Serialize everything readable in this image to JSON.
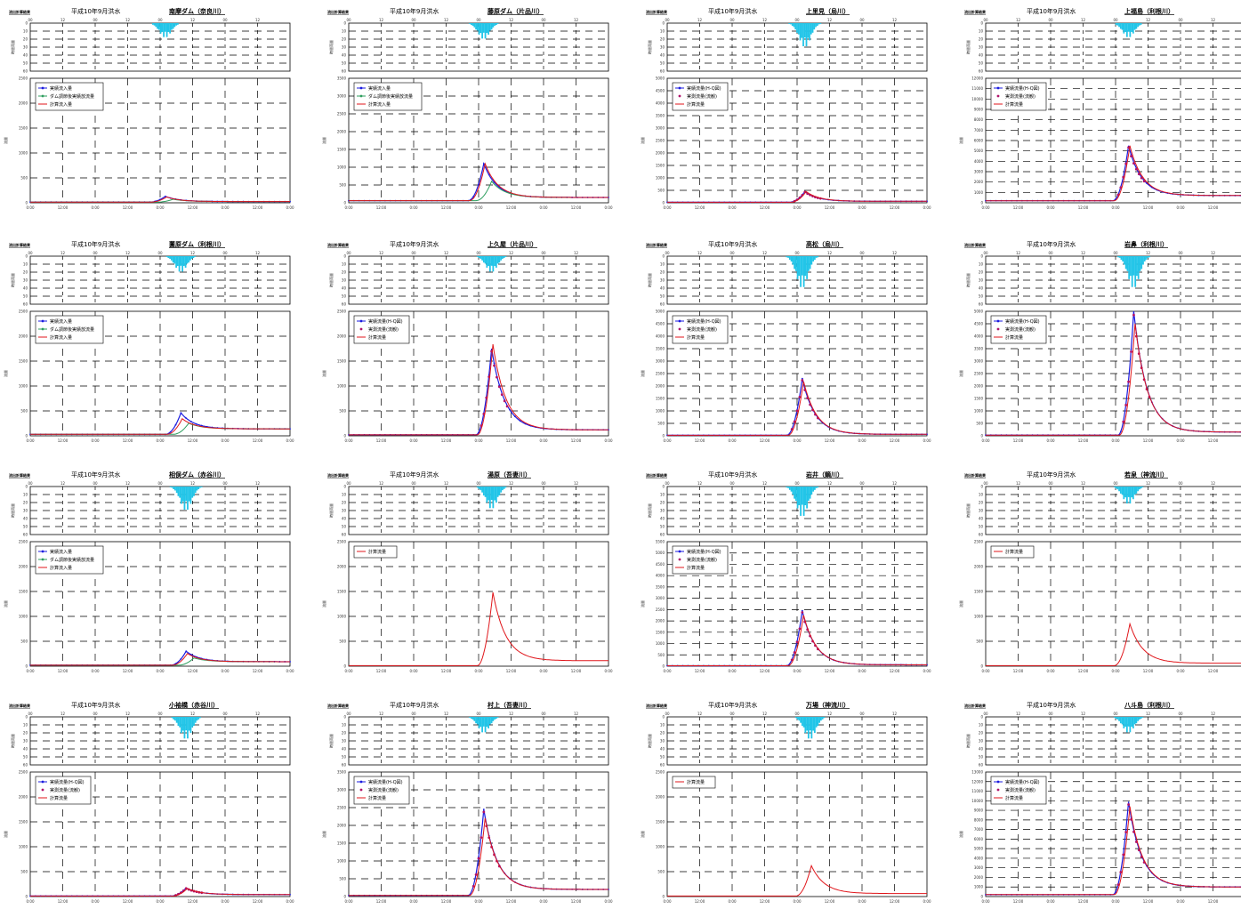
{
  "header_left": "流出計算結果",
  "header_event": "平成10年9月洪水",
  "rain_ylabel": "時間雨量",
  "flow_ylabel": "流量",
  "rain_ticks": [
    "0",
    "10",
    "20",
    "30",
    "40",
    "50",
    "60"
  ],
  "top_time_ticks": [
    "00",
    "12",
    "00",
    "12",
    "00",
    "12",
    "00",
    "12"
  ],
  "bottom_time_ticks": [
    "0:00",
    "12:00",
    "0:00",
    "12:00",
    "0:00",
    "12:00",
    "0:00",
    "12:00",
    "0:00"
  ],
  "colors": {
    "rain": "#22c5e8",
    "observed": "#1a1adf",
    "dam_release": "#2e9e5e",
    "computed": "#e0161b",
    "observed_dot": "#b0126a",
    "grid": "#000000"
  },
  "legend_labels": {
    "inflow": "実績流入量",
    "dam_release": "ダム調節後実績放流量",
    "computed_inflow": "計算流入量",
    "obs_hq": "実績流量(H-Q図)",
    "obs_meas": "実測流量(流観)",
    "computed_flow": "計算流量"
  },
  "chart_data": [
    {
      "type": "line",
      "title": "南摩ダム（奈良川）",
      "legend_type": "dam",
      "ylim": [
        0,
        2500
      ],
      "yticks": [
        0,
        500,
        1000,
        1500,
        2000,
        2500
      ],
      "peak": 130,
      "peak_pos": 0.52,
      "base": 15,
      "tail": 25,
      "calc_ratio": 0.9,
      "release": true,
      "rain_peak": 18
    },
    {
      "type": "line",
      "title": "藤原ダム（片品川）",
      "legend_type": "dam",
      "ylim": [
        0,
        3500
      ],
      "yticks": [
        0,
        500,
        1000,
        1500,
        2000,
        2500,
        3000,
        3500
      ],
      "peak": 1100,
      "peak_pos": 0.52,
      "base": 60,
      "tail": 150,
      "calc_ratio": 1.0,
      "release": true,
      "rain_peak": 20
    },
    {
      "type": "line",
      "title": "上里見（烏川）",
      "legend_type": "obs",
      "ylim": [
        0,
        5000
      ],
      "yticks": [
        0,
        500,
        1000,
        1500,
        2000,
        2500,
        3000,
        3500,
        4000,
        4500,
        5000
      ],
      "peak": 450,
      "peak_pos": 0.53,
      "base": 20,
      "tail": 60,
      "calc_ratio": 1.0,
      "release": false,
      "rain_peak": 30
    },
    {
      "type": "line",
      "title": "上福島（利根川）",
      "legend_type": "obs",
      "ylim": [
        0,
        12000
      ],
      "yticks": [
        0,
        1000,
        2000,
        3000,
        4000,
        5000,
        6000,
        7000,
        8000,
        9000,
        10000,
        11000,
        12000
      ],
      "peak": 5500,
      "peak_pos": 0.55,
      "base": 200,
      "tail": 700,
      "calc_ratio": 1.0,
      "release": false,
      "rain_peak": 18
    },
    {
      "type": "line",
      "title": "薗原ダム（利根川）",
      "legend_type": "dam",
      "ylim": [
        0,
        2500
      ],
      "yticks": [
        0,
        500,
        1000,
        1500,
        2000,
        2500
      ],
      "peak": 460,
      "peak_pos": 0.58,
      "base": 30,
      "tail": 140,
      "calc_ratio": 0.75,
      "release": true,
      "rain_peak": 20
    },
    {
      "type": "line",
      "title": "上久屋（片品川）",
      "legend_type": "obs",
      "ylim": [
        0,
        2500
      ],
      "yticks": [
        0,
        500,
        1000,
        1500,
        2000,
        2500
      ],
      "peak": 1750,
      "peak_pos": 0.55,
      "base": 20,
      "tail": 120,
      "calc_ratio": 1.05,
      "release": false,
      "rain_peak": 20
    },
    {
      "type": "line",
      "title": "高松（烏川）",
      "legend_type": "obs",
      "ylim": [
        0,
        5000
      ],
      "yticks": [
        0,
        500,
        1000,
        1500,
        2000,
        2500,
        3000,
        3500,
        4000,
        4500,
        5000
      ],
      "peak": 2300,
      "peak_pos": 0.52,
      "base": 20,
      "tail": 60,
      "calc_ratio": 0.95,
      "release": false,
      "rain_peak": 40
    },
    {
      "type": "line",
      "title": "岩鼻（利根川）",
      "legend_type": "obs",
      "ylim": [
        0,
        5000
      ],
      "yticks": [
        0,
        500,
        1000,
        1500,
        2000,
        2500,
        3000,
        3500,
        4000,
        4500,
        5000
      ],
      "peak": 5000,
      "peak_pos": 0.57,
      "base": 30,
      "tail": 150,
      "calc_ratio": 0.9,
      "release": false,
      "rain_peak": 40
    },
    {
      "type": "line",
      "title": "相俣ダム（赤谷川）",
      "legend_type": "dam",
      "ylim": [
        0,
        2500
      ],
      "yticks": [
        0,
        500,
        1000,
        1500,
        2000,
        2500
      ],
      "peak": 300,
      "peak_pos": 0.6,
      "base": 20,
      "tail": 90,
      "calc_ratio": 0.85,
      "release": true,
      "rain_peak": 30
    },
    {
      "type": "line",
      "title": "湯原（吾妻川）",
      "legend_type": "calc",
      "ylim": [
        0,
        2500
      ],
      "yticks": [
        0,
        500,
        1000,
        1500,
        2000,
        2500
      ],
      "peak": 1480,
      "peak_pos": 0.55,
      "base": 10,
      "tail": 110,
      "calc_ratio": 1.0,
      "release": false,
      "rain_peak": 28
    },
    {
      "type": "line",
      "title": "岩井（鏑川）",
      "legend_type": "obs",
      "ylim": [
        0,
        5500
      ],
      "yticks": [
        0,
        500,
        1000,
        1500,
        2000,
        2500,
        3000,
        3500,
        4000,
        4500,
        5000,
        5500
      ],
      "peak": 2450,
      "peak_pos": 0.52,
      "base": 20,
      "tail": 60,
      "calc_ratio": 0.92,
      "release": false,
      "rain_peak": 38
    },
    {
      "type": "line",
      "title": "若泉（神流川）",
      "legend_type": "calc",
      "ylim": [
        0,
        2500
      ],
      "yticks": [
        0,
        500,
        1000,
        1500,
        2000,
        2500
      ],
      "peak": 850,
      "peak_pos": 0.55,
      "base": 10,
      "tail": 60,
      "calc_ratio": 1.0,
      "release": false,
      "rain_peak": 22
    },
    {
      "type": "line",
      "title": "小袖橋（赤谷川）",
      "legend_type": "obs",
      "ylim": [
        0,
        2500
      ],
      "yticks": [
        0,
        500,
        1000,
        1500,
        2000,
        2500
      ],
      "peak": 170,
      "peak_pos": 0.6,
      "base": 10,
      "tail": 40,
      "calc_ratio": 0.95,
      "release": false,
      "rain_peak": 28
    },
    {
      "type": "line",
      "title": "村上（吾妻川）",
      "legend_type": "obs",
      "ylim": [
        0,
        3500
      ],
      "yticks": [
        0,
        500,
        1000,
        1500,
        2000,
        2500,
        3000,
        3500
      ],
      "peak": 2450,
      "peak_pos": 0.52,
      "base": 30,
      "tail": 200,
      "calc_ratio": 0.9,
      "release": false,
      "rain_peak": 20
    },
    {
      "type": "line",
      "title": "万場（神流川）",
      "legend_type": "calc",
      "ylim": [
        0,
        2500
      ],
      "yticks": [
        0,
        500,
        1000,
        1500,
        2000,
        2500
      ],
      "peak": 620,
      "peak_pos": 0.55,
      "base": 10,
      "tail": 60,
      "calc_ratio": 1.0,
      "release": false,
      "rain_peak": 28
    },
    {
      "type": "line",
      "title": "八斗島（利根川）",
      "legend_type": "obs",
      "ylim": [
        0,
        13000
      ],
      "yticks": [
        0,
        1000,
        2000,
        3000,
        4000,
        5000,
        6000,
        7000,
        8000,
        9000,
        10000,
        11000,
        12000,
        13000
      ],
      "peak": 9900,
      "peak_pos": 0.55,
      "base": 200,
      "tail": 1000,
      "calc_ratio": 0.95,
      "release": false,
      "rain_peak": 20
    }
  ]
}
